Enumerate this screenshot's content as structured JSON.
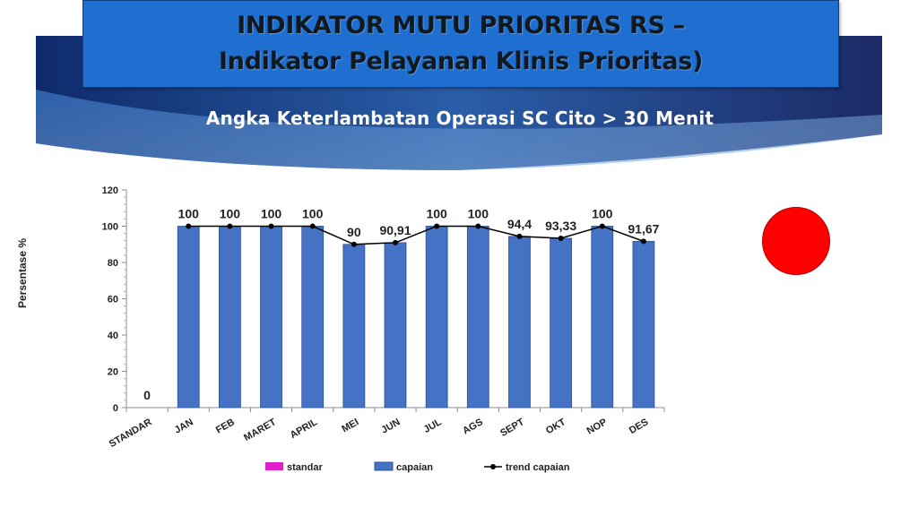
{
  "header": {
    "title_line1": "INDIKATOR MUTU PRIORITAS RS –",
    "title_line2": "Indikator Pelayanan Klinis Prioritas)",
    "subtitle": "Angka Keterlambatan Operasi SC Cito > 30 Menit"
  },
  "status_indicator": {
    "color": "#ff0000"
  },
  "chart_data": {
    "type": "bar",
    "categories": [
      "STANDAR",
      "JAN",
      "FEB",
      "MARET",
      "APRIL",
      "MEI",
      "JUN",
      "JUL",
      "AGS",
      "SEPT",
      "OKT",
      "NOP",
      "DES"
    ],
    "series": [
      {
        "name": "standar",
        "type": "bar",
        "color": "#e020c8",
        "values": [
          0,
          null,
          null,
          null,
          null,
          null,
          null,
          null,
          null,
          null,
          null,
          null,
          null
        ],
        "labels": [
          "0",
          "",
          "",
          "",
          "",
          "",
          "",
          "",
          "",
          "",
          "",
          "",
          ""
        ]
      },
      {
        "name": "capaian",
        "type": "bar",
        "color": "#4472c4",
        "values": [
          null,
          100,
          100,
          100,
          100,
          90,
          90.91,
          100,
          100,
          94.4,
          93.33,
          100,
          91.67
        ],
        "labels": [
          "",
          "100",
          "100",
          "100",
          "100",
          "90",
          "90,91",
          "100",
          "100",
          "94,4",
          "93,33",
          "100",
          "91,67"
        ]
      },
      {
        "name": "trend capaian",
        "type": "line",
        "color": "#000000",
        "values": [
          null,
          100,
          100,
          100,
          100,
          90,
          90.91,
          100,
          100,
          94.4,
          93.33,
          100,
          91.67
        ]
      }
    ],
    "ylabel": "Persentase %",
    "xlabel": "",
    "ylim": [
      0,
      120
    ],
    "yticks": [
      0,
      20,
      40,
      60,
      80,
      100,
      120
    ],
    "legend": "bottom",
    "grid": false
  }
}
